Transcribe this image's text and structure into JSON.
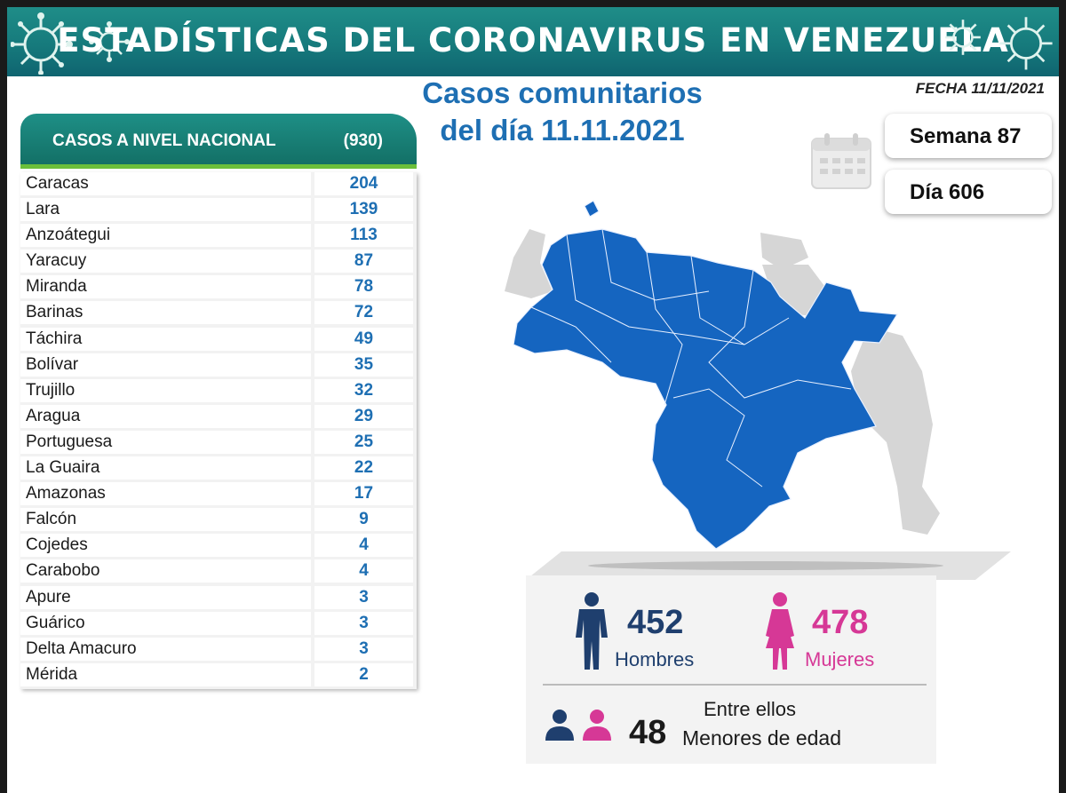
{
  "header": {
    "title": "ESTADÍSTICAS DEL CORONAVIRUS EN VENEZUELA"
  },
  "fecha": "FECHA 11/11/2021",
  "subtitle": {
    "line1": "Casos comunitarios",
    "line2": "del día 11.11.2021"
  },
  "panel": {
    "title": "CASOS A NIVEL NACIONAL",
    "total": "(930)"
  },
  "states": [
    {
      "name": "Caracas",
      "cases": "204"
    },
    {
      "name": "Lara",
      "cases": "139"
    },
    {
      "name": "Anzoátegui",
      "cases": "113"
    },
    {
      "name": "Yaracuy",
      "cases": "87"
    },
    {
      "name": "Miranda",
      "cases": "78"
    },
    {
      "name": "Barinas",
      "cases": "72"
    },
    {
      "name": "Táchira",
      "cases": "49"
    },
    {
      "name": "Bolívar",
      "cases": "35"
    },
    {
      "name": "Trujillo",
      "cases": "32"
    },
    {
      "name": "Aragua",
      "cases": "29"
    },
    {
      "name": "Portuguesa",
      "cases": "25"
    },
    {
      "name": "La Guaira",
      "cases": "22"
    },
    {
      "name": "Amazonas",
      "cases": "17"
    },
    {
      "name": "Falcón",
      "cases": "9"
    },
    {
      "name": "Cojedes",
      "cases": "4"
    },
    {
      "name": "Carabobo",
      "cases": "4"
    },
    {
      "name": "Apure",
      "cases": "3"
    },
    {
      "name": "Guárico",
      "cases": "3"
    },
    {
      "name": "Delta Amacuro",
      "cases": "3"
    },
    {
      "name": "Mérida",
      "cases": "2"
    }
  ],
  "week": "Semana 87",
  "day": "Día 606",
  "stats": {
    "men": "452",
    "men_label": "Hombres",
    "women": "478",
    "women_label": "Mujeres",
    "minors_intro": "Entre ellos",
    "minors": "48",
    "minors_label": "Menores de edad"
  },
  "colors": {
    "teal": "#167a7c",
    "blue": "#1e6fb3",
    "map_blue": "#1565c0",
    "men": "#1f3f6e",
    "women": "#d63896",
    "green": "#6bbf3a"
  },
  "icons": [
    "virus-icon",
    "calendar-icon",
    "man-icon",
    "woman-icon",
    "people-icon"
  ]
}
